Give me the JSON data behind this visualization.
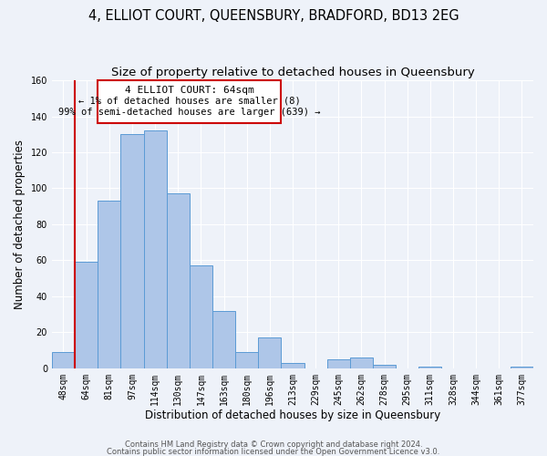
{
  "title": "4, ELLIOT COURT, QUEENSBURY, BRADFORD, BD13 2EG",
  "subtitle": "Size of property relative to detached houses in Queensbury",
  "xlabel": "Distribution of detached houses by size in Queensbury",
  "ylabel": "Number of detached properties",
  "bar_labels": [
    "48sqm",
    "64sqm",
    "81sqm",
    "97sqm",
    "114sqm",
    "130sqm",
    "147sqm",
    "163sqm",
    "180sqm",
    "196sqm",
    "213sqm",
    "229sqm",
    "245sqm",
    "262sqm",
    "278sqm",
    "295sqm",
    "311sqm",
    "328sqm",
    "344sqm",
    "361sqm",
    "377sqm"
  ],
  "bar_values": [
    9,
    59,
    93,
    130,
    132,
    97,
    57,
    32,
    9,
    17,
    3,
    0,
    5,
    6,
    2,
    0,
    1,
    0,
    0,
    0,
    1
  ],
  "bar_color": "#aec6e8",
  "bar_edge_color": "#5b9bd5",
  "highlight_bar_index": 1,
  "highlight_color": "#cc0000",
  "ylim": [
    0,
    160
  ],
  "yticks": [
    0,
    20,
    40,
    60,
    80,
    100,
    120,
    140,
    160
  ],
  "annotation_title": "4 ELLIOT COURT: 64sqm",
  "annotation_line1": "← 1% of detached houses are smaller (8)",
  "annotation_line2": "99% of semi-detached houses are larger (639) →",
  "annotation_box_color": "#ffffff",
  "annotation_box_edge": "#cc0000",
  "footer_line1": "Contains HM Land Registry data © Crown copyright and database right 2024.",
  "footer_line2": "Contains public sector information licensed under the Open Government Licence v3.0.",
  "bg_color": "#eef2f9",
  "grid_color": "#ffffff",
  "title_fontsize": 10.5,
  "subtitle_fontsize": 9.5,
  "axis_label_fontsize": 8.5,
  "tick_fontsize": 7,
  "footer_fontsize": 6
}
